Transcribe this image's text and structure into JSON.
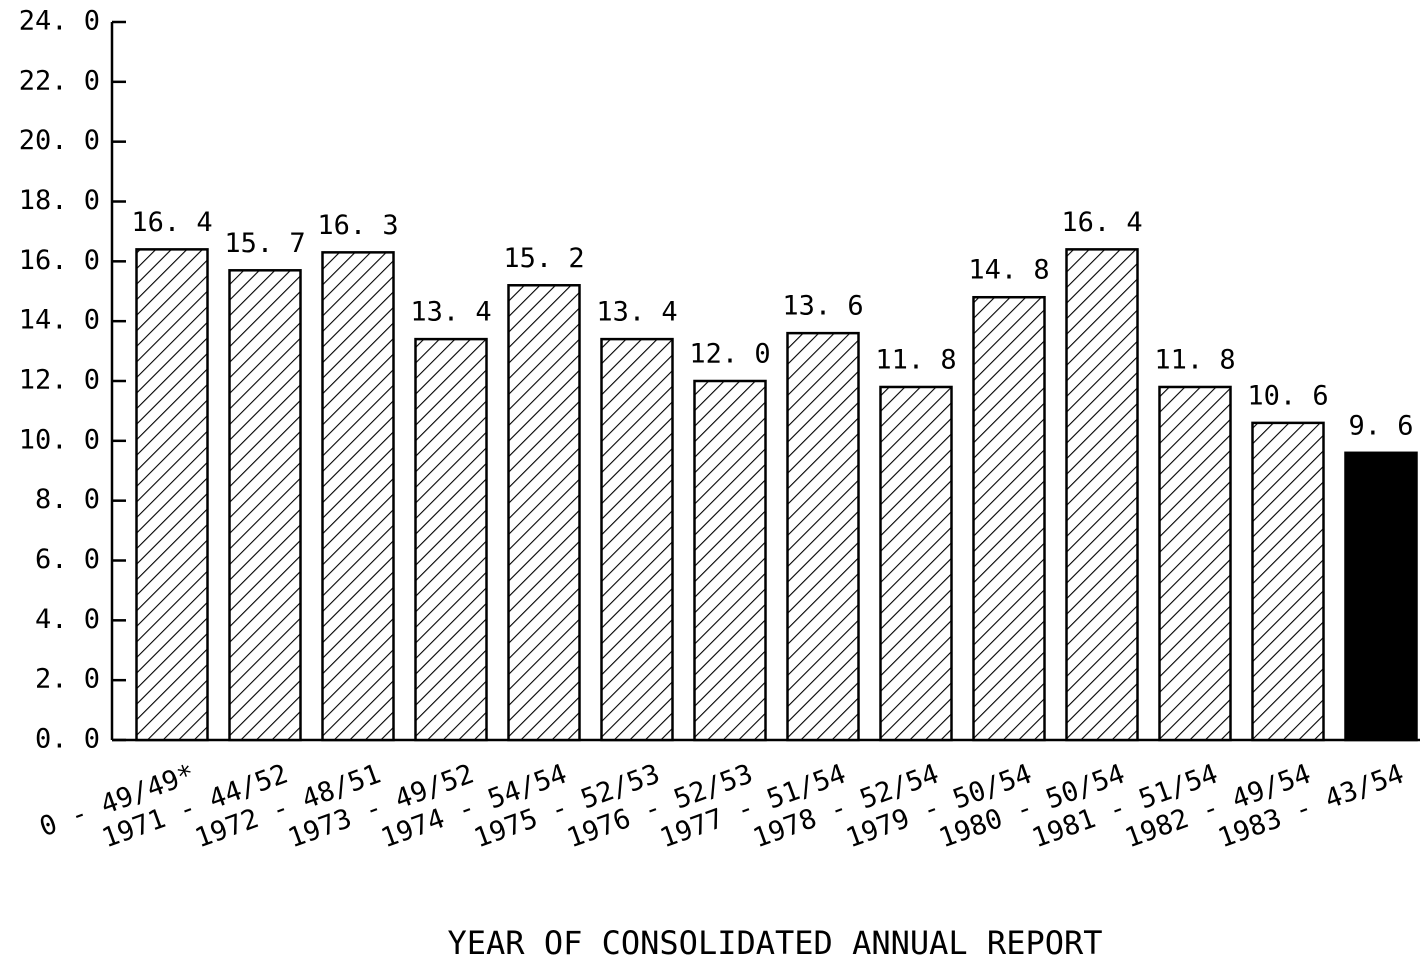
{
  "chart_data": {
    "type": "bar",
    "x_label": "YEAR OF CONSOLIDATED ANNUAL REPORT",
    "categories": [
      "0 - 49/49*",
      "1971 - 44/52",
      "1972 - 48/51",
      "1973 - 49/52",
      "1974 - 54/54",
      "1975 - 52/53",
      "1976 - 52/53",
      "1977 - 51/54",
      "1978 - 52/54",
      "1979 - 50/54",
      "1980 - 50/54",
      "1981 - 51/54",
      "1982 - 49/54",
      "1983 - 43/54"
    ],
    "values": [
      16.4,
      15.7,
      16.3,
      13.4,
      15.2,
      13.4,
      12.0,
      13.6,
      11.8,
      14.8,
      16.4,
      11.8,
      10.6,
      9.6
    ],
    "value_labels": [
      "16. 4",
      "15. 7",
      "16. 3",
      "13. 4",
      "15. 2",
      "13. 4",
      "12. 0",
      "13. 6",
      "11. 8",
      "14. 8",
      "16. 4",
      "11. 8",
      "10. 6",
      "9. 6"
    ],
    "fills": [
      "hatch",
      "hatch",
      "hatch",
      "hatch",
      "hatch",
      "hatch",
      "hatch",
      "hatch",
      "hatch",
      "hatch",
      "hatch",
      "hatch",
      "hatch",
      "solid"
    ],
    "color": "#000000",
    "ylim": [
      0,
      24
    ],
    "yticks": [
      {
        "value": 0,
        "label": "0. 0"
      },
      {
        "value": 2,
        "label": "2. 0"
      },
      {
        "value": 4,
        "label": "4. 0"
      },
      {
        "value": 6,
        "label": "6. 0"
      },
      {
        "value": 8,
        "label": "8. 0"
      },
      {
        "value": 10,
        "label": "10. 0"
      },
      {
        "value": 12,
        "label": "12. 0"
      },
      {
        "value": 14,
        "label": "14. 0"
      },
      {
        "value": 16,
        "label": "16. 0"
      },
      {
        "value": 18,
        "label": "18. 0"
      },
      {
        "value": 20,
        "label": "20. 0"
      },
      {
        "value": 22,
        "label": "22. 0"
      },
      {
        "value": 24,
        "label": "24. 0"
      }
    ],
    "grid": false
  }
}
